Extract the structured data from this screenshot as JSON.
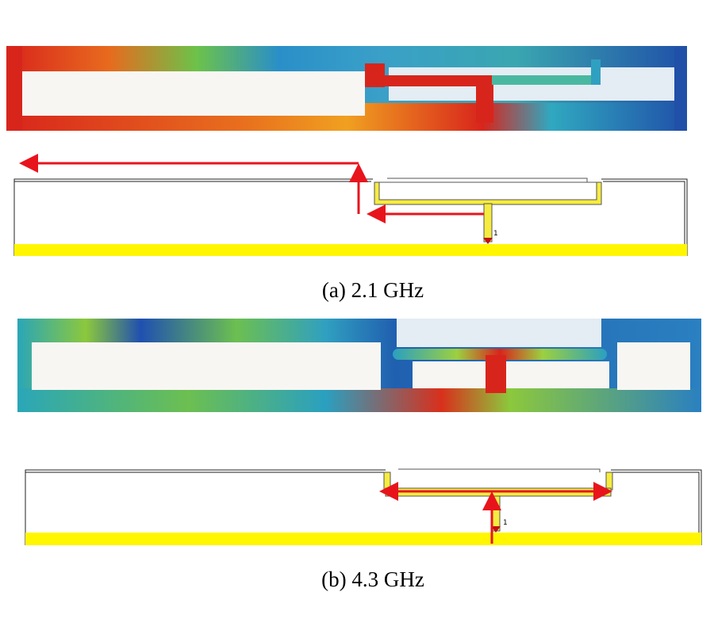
{
  "panels": [
    {
      "caption": "(a) 2.1 GHz",
      "port_label": "1"
    },
    {
      "caption": "(b) 4.3 GHz",
      "port_label": "1"
    }
  ]
}
